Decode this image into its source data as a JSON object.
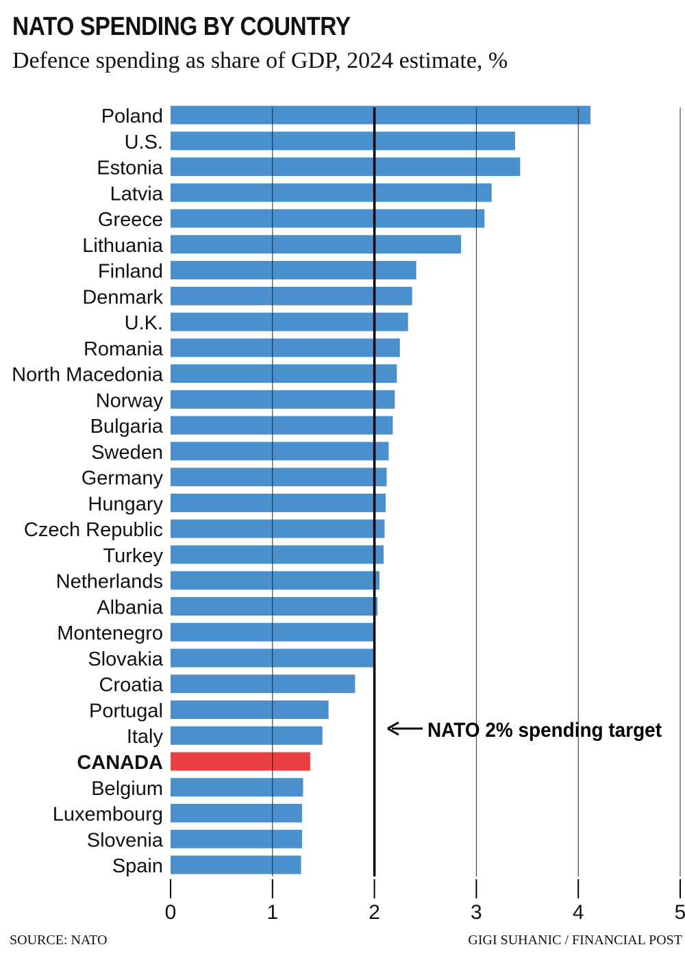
{
  "header": {
    "title": "NATO SPENDING BY COUNTRY",
    "subtitle": "Defence spending as share of GDP, 2024 estimate, %"
  },
  "footer": {
    "source": "SOURCE: NATO",
    "credit": "GIGI SUHANIC / FINANCIAL POST"
  },
  "chart_data": {
    "type": "bar",
    "orientation": "horizontal",
    "categories": [
      "Poland",
      "U.S.",
      "Estonia",
      "Latvia",
      "Greece",
      "Lithuania",
      "Finland",
      "Denmark",
      "U.K.",
      "Romania",
      "North Macedonia",
      "Norway",
      "Bulgaria",
      "Sweden",
      "Germany",
      "Hungary",
      "Czech Republic",
      "Turkey",
      "Netherlands",
      "Albania",
      "Montenegro",
      "Slovakia",
      "Croatia",
      "Portugal",
      "Italy",
      "CANADA",
      "Belgium",
      "Luxembourg",
      "Slovenia",
      "Spain"
    ],
    "values": [
      4.12,
      3.38,
      3.43,
      3.15,
      3.08,
      2.85,
      2.41,
      2.37,
      2.33,
      2.25,
      2.22,
      2.2,
      2.18,
      2.14,
      2.12,
      2.11,
      2.1,
      2.09,
      2.05,
      2.03,
      2.0,
      2.0,
      1.81,
      1.55,
      1.49,
      1.37,
      1.3,
      1.29,
      1.29,
      1.28
    ],
    "highlight": "CANADA",
    "xlim": [
      0,
      5
    ],
    "xticks": [
      "0",
      "1",
      "2",
      "3",
      "4",
      "5"
    ],
    "reference_line": {
      "value": 2,
      "label": "NATO 2% spending target"
    },
    "grid": true,
    "colors": {
      "bar": "#4a90cc",
      "highlight": "#e84040",
      "text": "#111111"
    }
  }
}
